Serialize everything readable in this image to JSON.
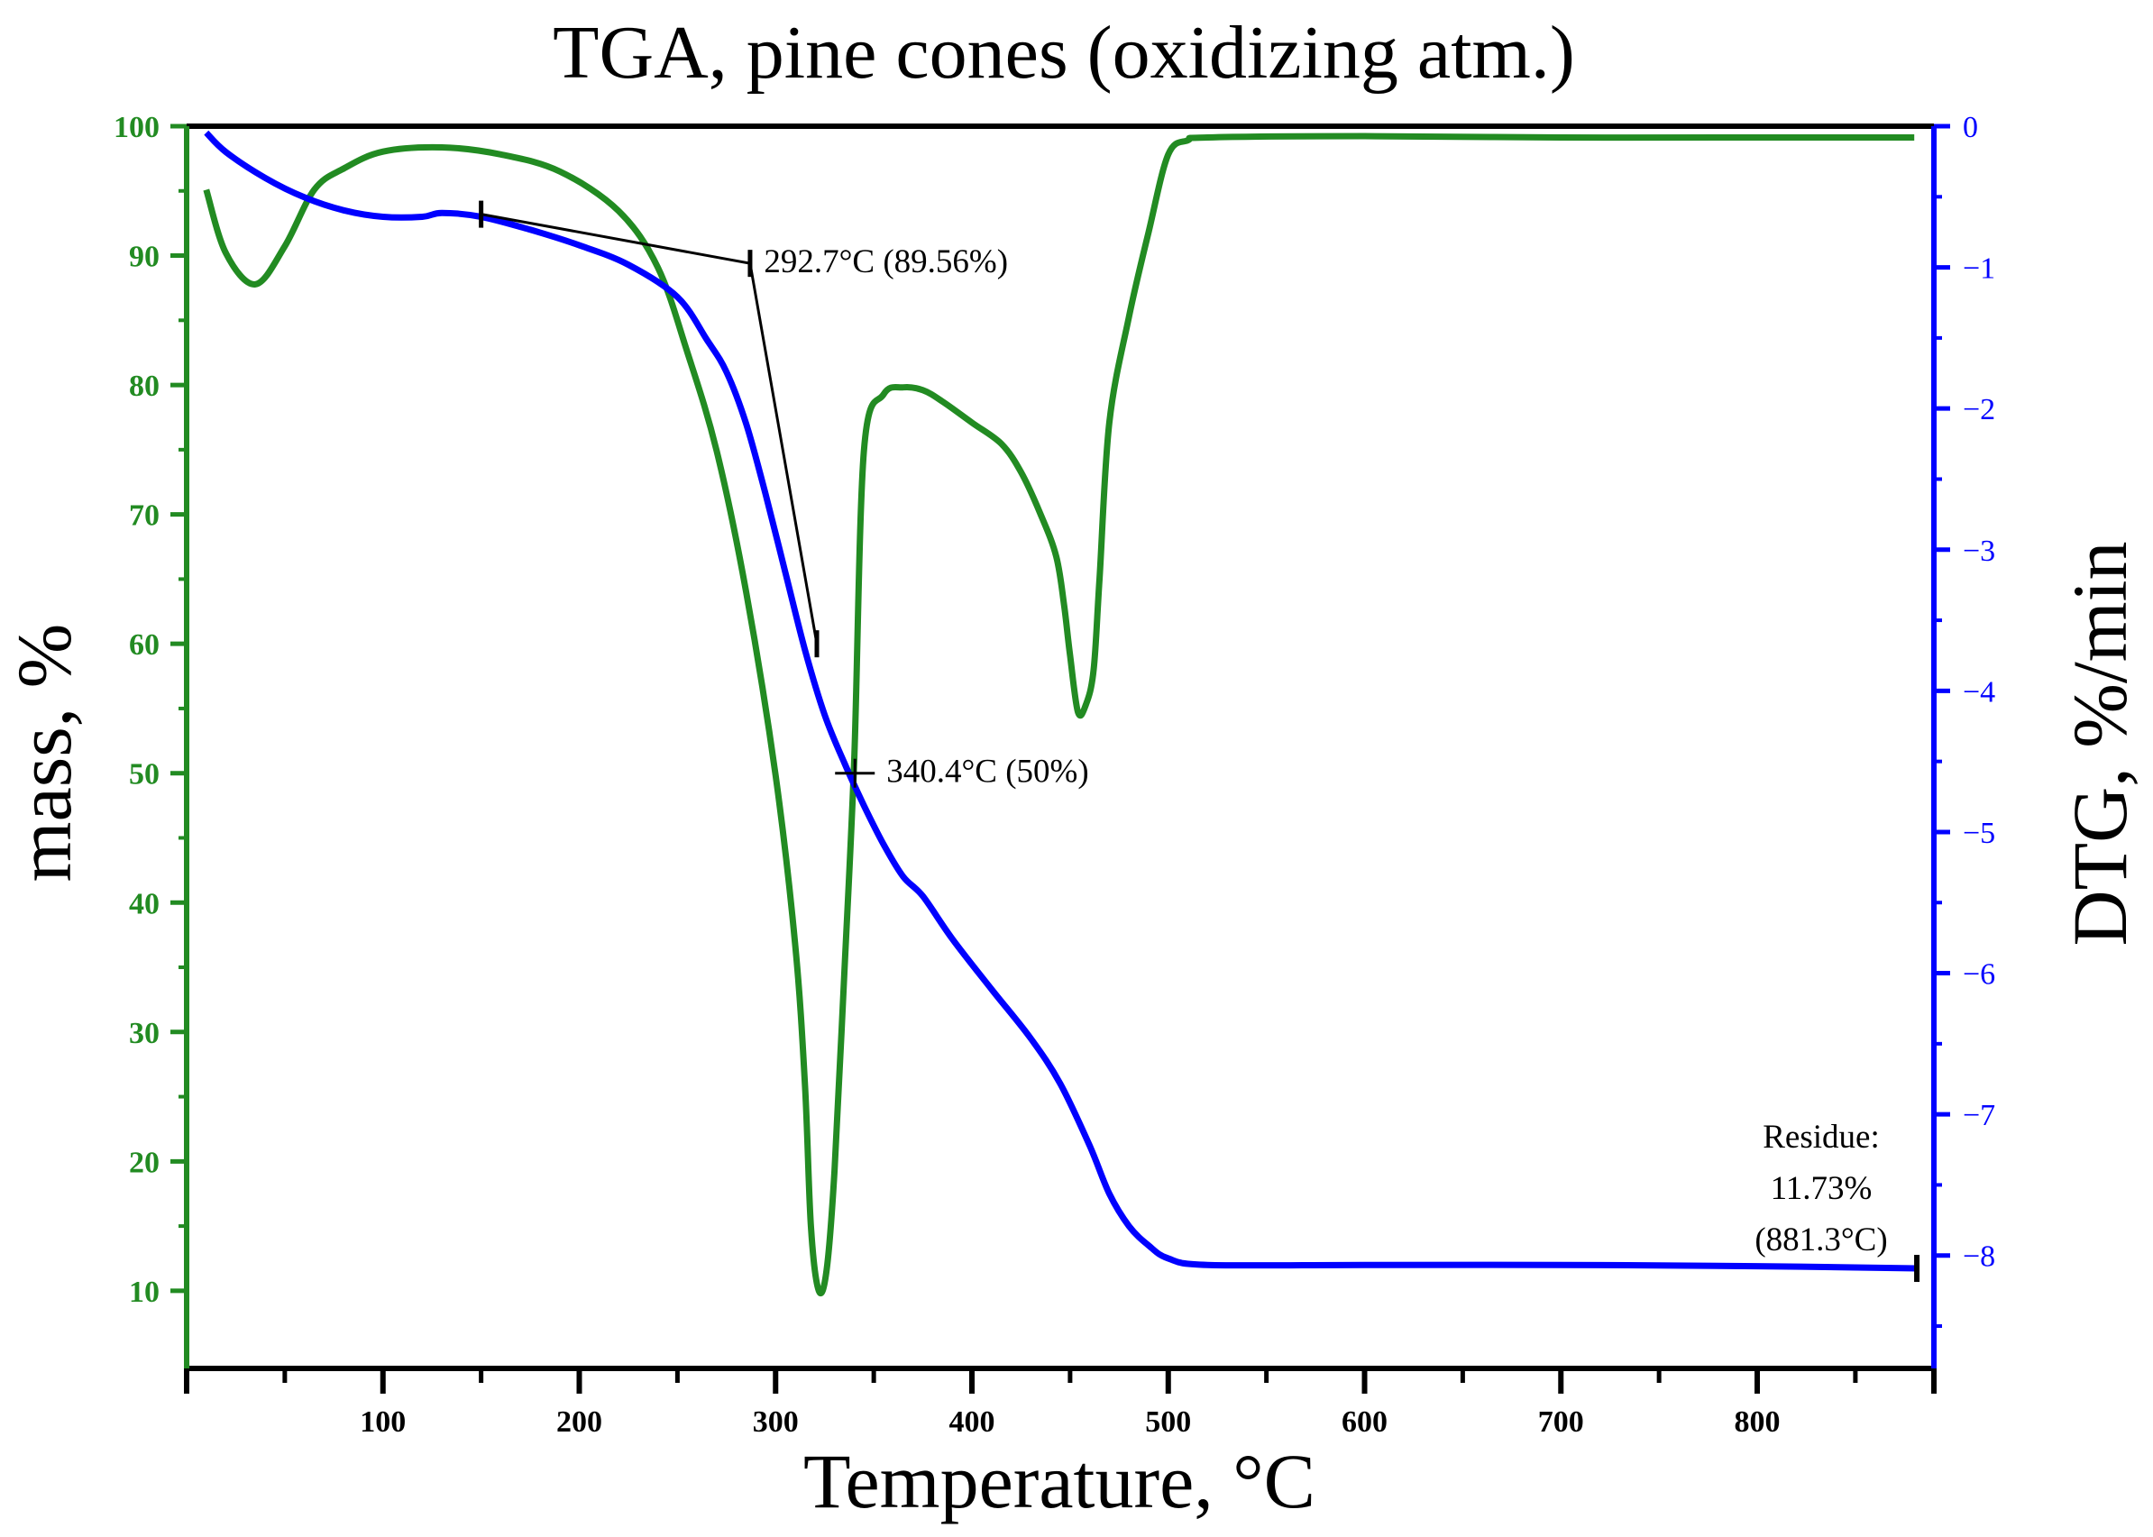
{
  "chart_data": {
    "type": "line",
    "title": "TGA, pine cones (oxidizing atm.)",
    "xlabel": "Temperature, °C",
    "ylabel_left": "mass, %",
    "ylabel_right": "DTG, %/min",
    "xlim": [
      0,
      890
    ],
    "ylim_left": [
      4,
      100
    ],
    "ylim_right": [
      -8.8,
      0
    ],
    "x_ticks": [
      100,
      200,
      300,
      400,
      500,
      600,
      700,
      800
    ],
    "y_left_ticks": [
      10,
      20,
      30,
      40,
      50,
      60,
      70,
      80,
      90,
      100
    ],
    "y_right_ticks": [
      0,
      -1,
      -2,
      -3,
      -4,
      -5,
      -6,
      -7,
      -8
    ],
    "y_right_tick_labels": [
      "0",
      "−1",
      "−2",
      "−3",
      "−4",
      "−5",
      "−6",
      "−7",
      "−8"
    ],
    "colors": {
      "mass": "#0000ff",
      "dtg": "#228b22",
      "left_axis": "#228b22",
      "right_axis": "#0000ff",
      "annotation": "#000000"
    },
    "series": [
      {
        "name": "mass",
        "axis": "left",
        "x": [
          10,
          20,
          40,
          60,
          80,
          100,
          120,
          130,
          150,
          175,
          200,
          225,
          250,
          265,
          275,
          285,
          295,
          305,
          315,
          325,
          335,
          345,
          355,
          365,
          375,
          390,
          410,
          430,
          445,
          460,
          470,
          480,
          490,
          500,
          520,
          600,
          700,
          800,
          881.3
        ],
        "y": [
          99.5,
          98,
          96,
          94.5,
          93.5,
          93,
          93,
          93.3,
          93,
          92,
          90.8,
          89.3,
          86.8,
          83.5,
          81,
          77,
          71.5,
          65.5,
          59.5,
          54.5,
          50.8,
          47.5,
          44.5,
          42,
          40.5,
          37.2,
          33.3,
          29.5,
          26,
          21.2,
          17.5,
          15,
          13.5,
          12.5,
          12,
          12,
          12,
          11.9,
          11.73
        ]
      },
      {
        "name": "DTG",
        "axis": "right",
        "x": [
          10,
          20,
          35,
          50,
          65,
          80,
          100,
          130,
          160,
          190,
          220,
          240,
          255,
          270,
          285,
          300,
          310,
          315,
          318,
          322,
          326,
          330,
          335,
          340,
          345,
          355,
          365,
          375,
          385,
          400,
          415,
          425,
          435,
          443,
          447,
          450,
          454,
          458,
          462,
          465,
          470,
          480,
          490,
          500,
          510,
          520,
          600,
          700,
          800,
          880
        ],
        "y": [
          -0.45,
          -0.9,
          -1.12,
          -0.85,
          -0.45,
          -0.3,
          -0.18,
          -0.15,
          -0.2,
          -0.32,
          -0.6,
          -1,
          -1.6,
          -2.3,
          -3.3,
          -4.6,
          -5.8,
          -6.8,
          -7.8,
          -8.25,
          -8.1,
          -7.4,
          -6,
          -4.5,
          -2.3,
          -1.9,
          -1.85,
          -1.87,
          -1.95,
          -2.1,
          -2.25,
          -2.45,
          -2.75,
          -3.05,
          -3.4,
          -3.75,
          -4.15,
          -4.1,
          -3.85,
          -3.2,
          -2.1,
          -1.35,
          -0.75,
          -0.2,
          -0.1,
          -0.08,
          -0.07,
          -0.08,
          -0.08,
          -0.08
        ]
      }
    ],
    "annotations": [
      {
        "label": "292.7°C (89.56%)",
        "x": 292.7,
        "y": 89.56
      },
      {
        "label": "340.4°C (50%)",
        "x": 340.4,
        "y": 50
      }
    ],
    "residue": {
      "line1": "Residue:",
      "line2": "11.73%",
      "line3": "(881.3°C)",
      "x": 881.3,
      "y": 11.73
    }
  }
}
